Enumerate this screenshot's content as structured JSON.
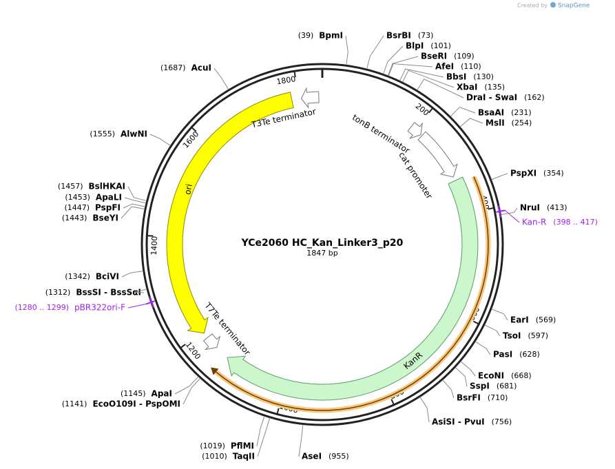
{
  "logo": {
    "created_by": "Created by",
    "brand": "SnapGene"
  },
  "map": {
    "title": "YCe2060 HC_Kan_Linker3_p20",
    "length": "1847 bp"
  },
  "ticks": [
    "200",
    "400",
    "600",
    "800",
    "1000",
    "1200",
    "1400",
    "1600",
    "1800"
  ],
  "enzymes": [
    {
      "name": "BpmI",
      "position": "(39)"
    },
    {
      "name": "BsrBI",
      "position": "(73)"
    },
    {
      "name": "BlpI",
      "position": "(101)"
    },
    {
      "name": "BseRI",
      "position": "(109)"
    },
    {
      "name": "AfeI",
      "position": "(110)"
    },
    {
      "name": "BbsI",
      "position": "(130)"
    },
    {
      "name": "XbaI",
      "position": "(135)"
    },
    {
      "name": "DraI - SwaI",
      "position": "(162)"
    },
    {
      "name": "BsaAI",
      "position": "(231)"
    },
    {
      "name": "MslI",
      "position": "(254)"
    },
    {
      "name": "PspXI",
      "position": "(354)"
    },
    {
      "name": "NruI",
      "position": "(413)"
    },
    {
      "name": "EarI",
      "position": "(569)"
    },
    {
      "name": "TsoI",
      "position": "(597)"
    },
    {
      "name": "PasI",
      "position": "(628)"
    },
    {
      "name": "EcoNI",
      "position": "(668)"
    },
    {
      "name": "SspI",
      "position": "(681)"
    },
    {
      "name": "BsrFI",
      "position": "(710)"
    },
    {
      "name": "AsiSI - PvuI",
      "position": "(756)"
    },
    {
      "name": "AseI",
      "position": "(955)"
    },
    {
      "name": "TaqII",
      "position": "(1010)"
    },
    {
      "name": "PflMI",
      "position": "(1019)"
    },
    {
      "name": "EcoO109I - PspOMI",
      "position": "(1141)"
    },
    {
      "name": "ApaI",
      "position": "(1145)"
    },
    {
      "name": "BssSI - BssSαI",
      "position": "(1312)"
    },
    {
      "name": "BciVI",
      "position": "(1342)"
    },
    {
      "name": "BseYI",
      "position": "(1443)"
    },
    {
      "name": "PspFI",
      "position": "(1447)"
    },
    {
      "name": "ApaLI",
      "position": "(1453)"
    },
    {
      "name": "BslHKAI",
      "position": "(1457)"
    },
    {
      "name": "AlwNI",
      "position": "(1555)"
    },
    {
      "name": "AcuI",
      "position": "(1687)"
    }
  ],
  "features": [
    {
      "label": "T3Te terminator"
    },
    {
      "label": "tonB terminator"
    },
    {
      "label": "cat promoter"
    },
    {
      "label": "ori"
    },
    {
      "label": "KanR"
    },
    {
      "label": "T7Te terminator"
    }
  ],
  "primers": [
    {
      "name": "Kan-R",
      "range": "(398 .. 417)"
    },
    {
      "name": "pBR322ori-F",
      "range": "(1280 .. 1299)"
    }
  ]
}
